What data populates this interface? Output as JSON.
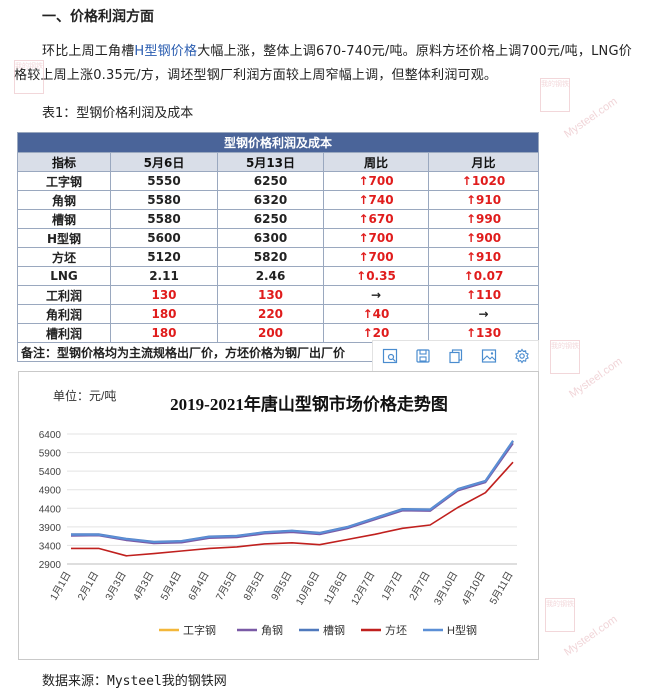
{
  "section": {
    "heading": "一、价格利润方面"
  },
  "paragraph": {
    "part1": "环比上周工角槽",
    "link": "H型钢价格",
    "part2": "大幅上涨，整体上调670-740元/吨。原料方坯价格上调700元/吨，LNG价格较上周上涨0.35元/方，调坯型钢厂利润方面较上周窄幅上调，但整体利润可观。"
  },
  "table_caption": "表1：型钢价格利润及成本",
  "price_table": {
    "title": "型钢价格利润及成本",
    "headers": [
      "指标",
      "5月6日",
      "5月13日",
      "周比",
      "月比"
    ],
    "rows": [
      {
        "name": "工字钢",
        "d1": "5550",
        "d2": "6250",
        "wk": "↑700",
        "mo": "↑1020"
      },
      {
        "name": "角钢",
        "d1": "5580",
        "d2": "6320",
        "wk": "↑740",
        "mo": "↑910"
      },
      {
        "name": "槽钢",
        "d1": "5580",
        "d2": "6250",
        "wk": "↑670",
        "mo": "↑990"
      },
      {
        "name": "H型钢",
        "d1": "5600",
        "d2": "6300",
        "wk": "↑700",
        "mo": "↑900"
      },
      {
        "name": "方坯",
        "d1": "5120",
        "d2": "5820",
        "wk": "↑700",
        "mo": "↑910"
      },
      {
        "name": "LNG",
        "d1": "2.11",
        "d2": "2.46",
        "wk": "↑0.35",
        "mo": "↑0.07"
      },
      {
        "name": "工利润",
        "d1": "130",
        "d2": "130",
        "wk": "→",
        "mo": "↑110"
      },
      {
        "name": "角利润",
        "d1": "180",
        "d2": "220",
        "wk": "↑40",
        "mo": "→"
      },
      {
        "name": "槽利润",
        "d1": "180",
        "d2": "200",
        "wk": "↑20",
        "mo": "↑130"
      }
    ],
    "note": "备注：型钢价格均为主流规格出厂价，方坯价格为钢厂出厂价"
  },
  "toolbar_icons": [
    "image-search-icon",
    "save-icon",
    "copy-icon",
    "image-icon",
    "settings-icon"
  ],
  "watermark": {
    "brand": "我的钢铁",
    "site": "Mysteel.com"
  },
  "chart_data": {
    "type": "line",
    "title": "2019-2021年唐山型钢市场价格走势图",
    "unit_label": "单位：元/吨",
    "ylim": [
      2900,
      6400
    ],
    "yticks": [
      2900,
      3400,
      3900,
      4400,
      4900,
      5400,
      5900,
      6400
    ],
    "xlabels": [
      "1月1日",
      "2月1日",
      "3月3日",
      "4月3日",
      "5月4日",
      "6月4日",
      "7月5日",
      "8月5日",
      "9月5日",
      "10月6日",
      "11月6日",
      "12月7日",
      "1月7日",
      "2月7日",
      "3月10日",
      "4月10日",
      "5月11日"
    ],
    "grid": "horizontal",
    "legend_position": "bottom",
    "series": [
      {
        "name": "工字钢",
        "color": "#f3b73a",
        "x": [
          0,
          1,
          2,
          3,
          4,
          5,
          6,
          7,
          8,
          9,
          10,
          11,
          12,
          13,
          14,
          15,
          16
        ],
        "values": [
          3680,
          3680,
          3560,
          3480,
          3500,
          3620,
          3640,
          3740,
          3780,
          3720,
          3880,
          4120,
          4360,
          4350,
          4900,
          5120,
          6200
        ]
      },
      {
        "name": "角钢",
        "color": "#7a5aa6",
        "x": [
          0,
          1,
          2,
          3,
          4,
          5,
          6,
          7,
          8,
          9,
          10,
          11,
          12,
          13,
          14,
          15,
          16
        ],
        "values": [
          3660,
          3670,
          3540,
          3460,
          3480,
          3600,
          3620,
          3720,
          3760,
          3700,
          3860,
          4100,
          4340,
          4330,
          4880,
          5100,
          6150
        ]
      },
      {
        "name": "槽钢",
        "color": "#4f79bd",
        "x": [
          0,
          1,
          2,
          3,
          4,
          5,
          6,
          7,
          8,
          9,
          10,
          11,
          12,
          13,
          14,
          15,
          16
        ],
        "values": [
          3700,
          3700,
          3580,
          3500,
          3520,
          3640,
          3660,
          3760,
          3800,
          3740,
          3900,
          4140,
          4380,
          4370,
          4920,
          5140,
          6220
        ]
      },
      {
        "name": "方坯",
        "color": "#c0201e",
        "x": [
          0,
          1,
          2,
          3,
          4,
          5,
          6,
          7,
          8,
          9,
          10,
          11,
          12,
          13,
          14,
          15,
          16
        ],
        "values": [
          3320,
          3320,
          3120,
          3180,
          3250,
          3320,
          3360,
          3440,
          3470,
          3420,
          3560,
          3700,
          3860,
          3950,
          4420,
          4820,
          5640
        ]
      },
      {
        "name": "H型钢",
        "color": "#5b8fd6",
        "x": [
          0,
          1,
          2,
          3,
          4,
          5,
          6,
          7,
          8,
          9,
          10,
          11,
          12,
          13,
          14,
          15,
          16
        ],
        "values": [
          3690,
          3690,
          3570,
          3490,
          3510,
          3630,
          3650,
          3750,
          3790,
          3730,
          3890,
          4130,
          4370,
          4360,
          4910,
          5130,
          6210
        ]
      }
    ]
  },
  "footer": {
    "source": "数据来源：Mysteel我的钢铁网"
  }
}
